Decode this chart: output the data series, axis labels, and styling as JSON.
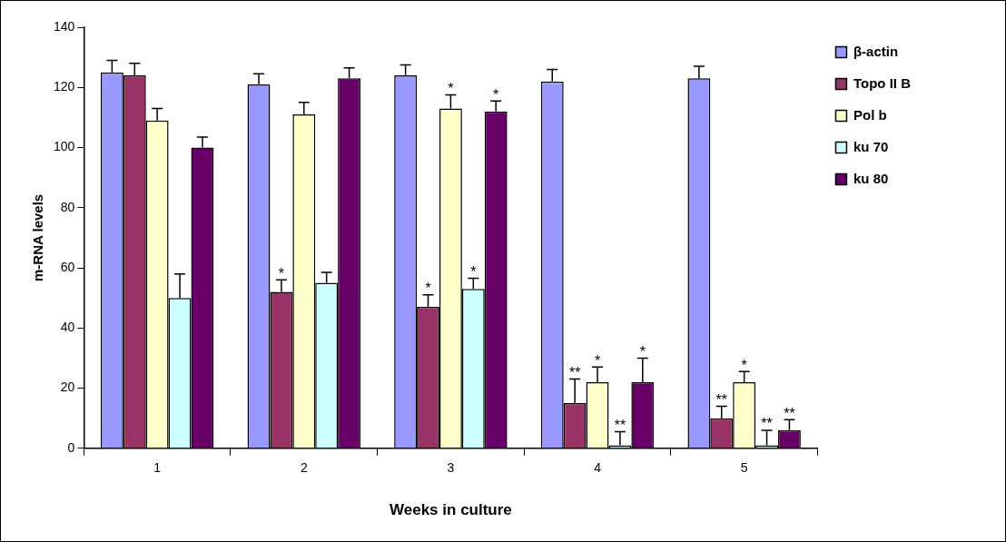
{
  "chart_data": {
    "type": "bar",
    "xlabel": "Weeks in culture",
    "ylabel": "m-RNA levels",
    "categories": [
      "1",
      "2",
      "3",
      "4",
      "5"
    ],
    "ylim": [
      0,
      140
    ],
    "yticks": [
      0,
      20,
      40,
      60,
      80,
      100,
      120,
      140
    ],
    "grid": false,
    "legend": "top right",
    "series": [
      {
        "name": "β-actin",
        "color": "#9999ff",
        "values": [
          125,
          121,
          124,
          122,
          123
        ],
        "errors": [
          [
            125,
            129
          ],
          [
            121,
            124.5
          ],
          [
            124,
            127.5
          ],
          [
            122,
            126
          ],
          [
            123,
            127
          ]
        ],
        "value_labels": [
          null,
          null,
          null,
          null,
          null
        ]
      },
      {
        "name": "Topo II B",
        "color": "#993366",
        "values": [
          124,
          52,
          47,
          15,
          10
        ],
        "errors": [
          [
            124,
            128
          ],
          [
            52,
            56
          ],
          [
            47,
            51
          ],
          [
            15,
            23
          ],
          [
            10,
            14
          ]
        ],
        "value_labels": [
          null,
          "*",
          "*",
          "**",
          "**"
        ]
      },
      {
        "name": "Pol b",
        "color": "#ffffcc",
        "values": [
          109,
          111,
          113,
          22,
          22
        ],
        "errors": [
          [
            109,
            113
          ],
          [
            111,
            115
          ],
          [
            113,
            117.5
          ],
          [
            22,
            27
          ],
          [
            22,
            25.5
          ]
        ],
        "value_labels": [
          null,
          null,
          "*",
          "*",
          "*"
        ]
      },
      {
        "name": "ku 70",
        "color": "#ccffff",
        "values": [
          50,
          55,
          53,
          1,
          1
        ],
        "errors": [
          [
            50,
            58
          ],
          [
            55,
            58.5
          ],
          [
            53,
            56.5
          ],
          [
            1,
            5.5
          ],
          [
            1,
            6
          ]
        ],
        "value_labels": [
          null,
          null,
          "*",
          "**",
          "**"
        ]
      },
      {
        "name": "ku 80",
        "color": "#660066",
        "values": [
          100,
          123,
          112,
          22,
          6
        ],
        "errors": [
          [
            100,
            103.5
          ],
          [
            123,
            126.5
          ],
          [
            112,
            115.5
          ],
          [
            22,
            30
          ],
          [
            6,
            9.5
          ]
        ],
        "value_labels": [
          null,
          null,
          "*",
          "*",
          "**"
        ]
      }
    ]
  }
}
